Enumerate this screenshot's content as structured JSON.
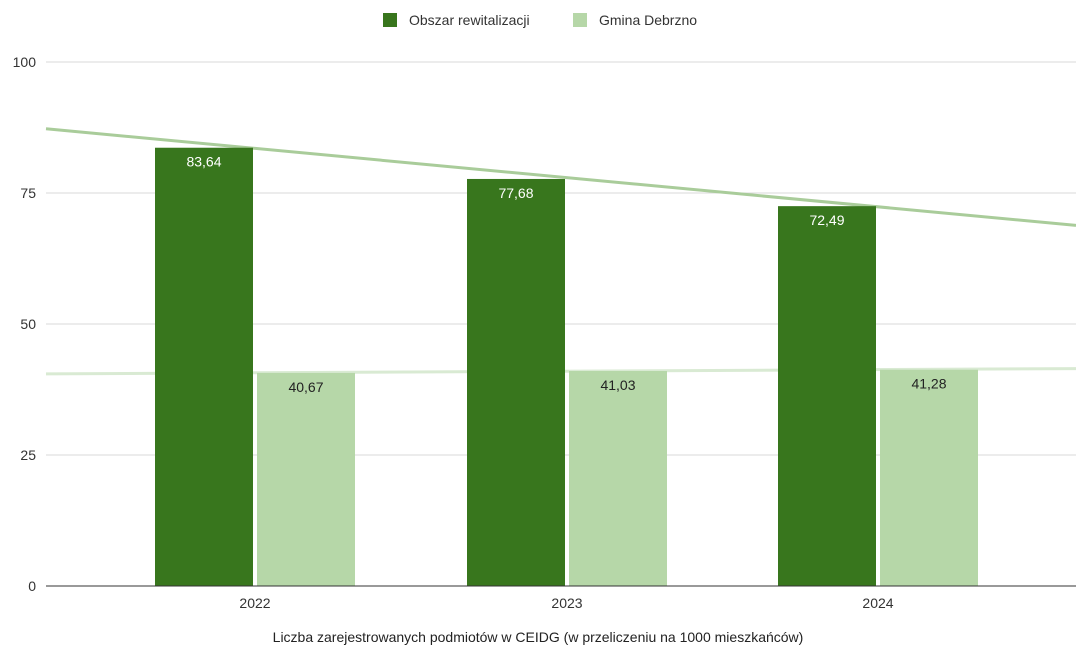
{
  "chart_data": {
    "type": "bar",
    "categories": [
      "2022",
      "2023",
      "2024"
    ],
    "series": [
      {
        "name": "Obszar rewitalizacji",
        "values": [
          83.64,
          77.68,
          72.49
        ],
        "labels": [
          "83,64",
          "77,68",
          "72,49"
        ],
        "color": "#38761d",
        "label_color": "#ffffff",
        "label_position": "inside-top"
      },
      {
        "name": "Gmina Debrzno",
        "values": [
          40.67,
          41.03,
          41.28
        ],
        "labels": [
          "40,67",
          "41,03",
          "41,28"
        ],
        "color": "#b6d7a8",
        "label_color": "#222222",
        "label_position": "inside-top"
      }
    ],
    "trendlines": [
      {
        "series": "Obszar rewitalizacji",
        "type": "linear",
        "color": "#a9cc9a"
      },
      {
        "series": "Gmina Debrzno",
        "type": "linear",
        "color": "#d9ead3"
      }
    ],
    "title": "",
    "xlabel": "Liczba zarejestrowanych podmiotów w CEIDG (w przeliczeniu na 1000 mieszkańców)",
    "ylabel": "",
    "ylim": [
      0,
      100
    ],
    "yticks": [
      0,
      25,
      50,
      75,
      100
    ],
    "ytick_labels": [
      "0",
      "25",
      "50",
      "75",
      "100"
    ],
    "grid": true,
    "legend_position": "top"
  }
}
